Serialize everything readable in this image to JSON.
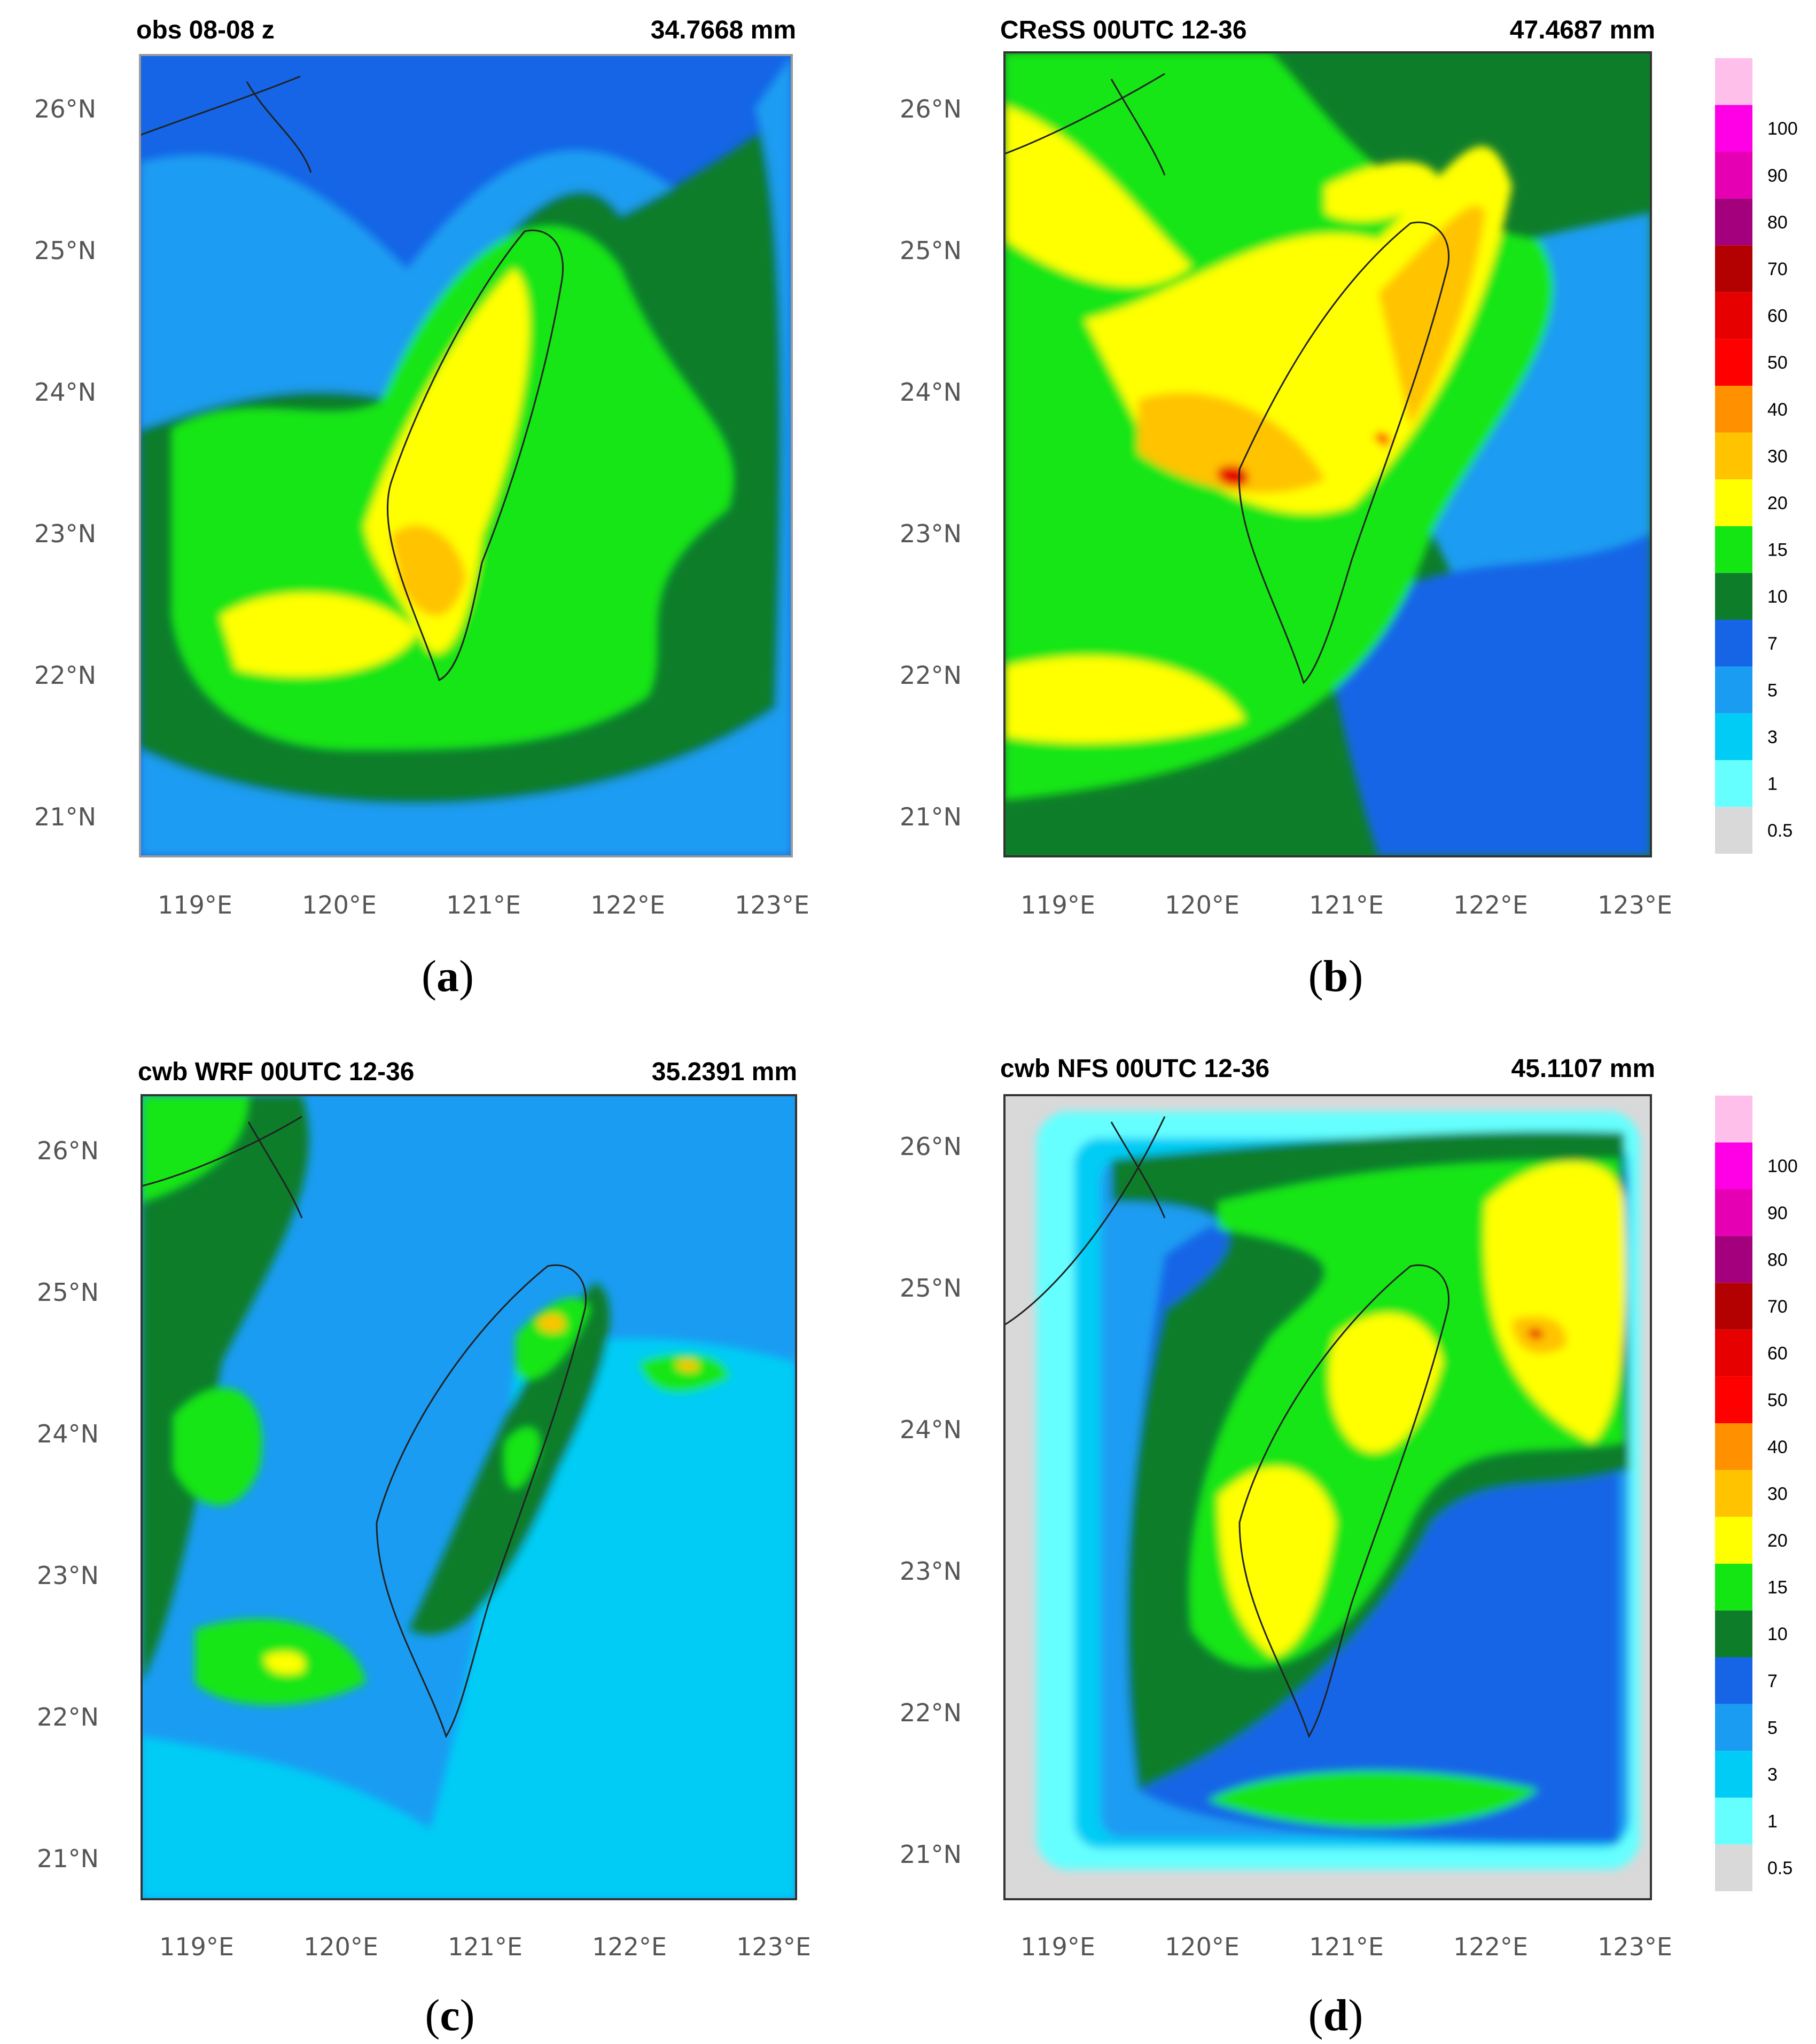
{
  "colorbar": {
    "levels": [
      {
        "label": "0.5",
        "color": "#d9d9d9"
      },
      {
        "label": "1",
        "color": "#66ffff"
      },
      {
        "label": "3",
        "color": "#00ccf5"
      },
      {
        "label": "5",
        "color": "#1a9cf2"
      },
      {
        "label": "7",
        "color": "#1565e6"
      },
      {
        "label": "10",
        "color": "#0e7d2a"
      },
      {
        "label": "15",
        "color": "#14e614"
      },
      {
        "label": "20",
        "color": "#ffff00"
      },
      {
        "label": "30",
        "color": "#ffc300"
      },
      {
        "label": "40",
        "color": "#ff9100"
      },
      {
        "label": "50",
        "color": "#ff0000"
      },
      {
        "label": "60",
        "color": "#e60000"
      },
      {
        "label": "70",
        "color": "#b30000"
      },
      {
        "label": "80",
        "color": "#a4007e"
      },
      {
        "label": "90",
        "color": "#e600b4"
      },
      {
        "label": "100",
        "color": "#ff00e6"
      },
      {
        "label": "",
        "color": "#ffbfeb"
      }
    ]
  },
  "axes": {
    "lon_ticks": [
      "119°E",
      "120°E",
      "121°E",
      "122°E",
      "123°E"
    ],
    "lat_ticks": [
      "26°N",
      "25°N",
      "24°N",
      "23°N",
      "22°N",
      "21°N"
    ]
  },
  "panels": [
    {
      "id": "a",
      "title": "obs 08-08 z",
      "total": "34.7668 mm",
      "caption_open": "(",
      "caption_letter": "a",
      "caption_close": ")",
      "background": "blue"
    },
    {
      "id": "b",
      "title": "CReSS 00UTC 12-36",
      "total": "47.4687 mm",
      "caption_open": "(",
      "caption_letter": "b",
      "caption_close": ")",
      "background": "green"
    },
    {
      "id": "c",
      "title": "cwb WRF 00UTC 12-36",
      "total": "35.2391 mm",
      "caption_open": "(",
      "caption_letter": "c",
      "caption_close": ")",
      "background": "lightblue"
    },
    {
      "id": "d",
      "title": "cwb NFS 00UTC 12-36",
      "total": "45.1107 mm",
      "caption_open": "(",
      "caption_letter": "d",
      "caption_close": ")",
      "background": "grey"
    }
  ]
}
